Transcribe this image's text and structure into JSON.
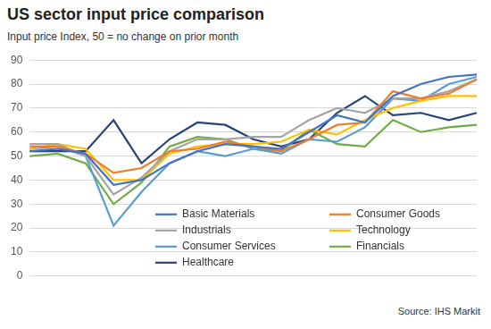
{
  "chart_data": {
    "type": "line",
    "title": "US sector input price comparison",
    "subtitle": "Input price Index, 50 = no change on prior month",
    "source": "Source: IHS Markit",
    "categories": [
      null,
      null,
      null,
      null,
      null,
      null,
      null,
      null,
      null,
      null,
      null,
      null,
      null,
      null,
      null,
      null,
      null
    ],
    "series": [
      {
        "name": "Basic Materials",
        "color": "#4472c4",
        "values": [
          52,
          53,
          51,
          38,
          40,
          47,
          52,
          55,
          54,
          53,
          60,
          67,
          64,
          75,
          80,
          83,
          84
        ]
      },
      {
        "name": "Consumer Goods",
        "color": "#ed7d31",
        "values": [
          54,
          54,
          51,
          43,
          45,
          52,
          53,
          56,
          54,
          52,
          57,
          63,
          64,
          77,
          74,
          76,
          82
        ]
      },
      {
        "name": "Industrials",
        "color": "#a5a5a5",
        "values": [
          55,
          55,
          50,
          34,
          41,
          52,
          57,
          57,
          58,
          58,
          65,
          70,
          68,
          74,
          74,
          77,
          82
        ]
      },
      {
        "name": "Technology",
        "color": "#ffc000",
        "values": [
          53,
          55,
          53,
          40,
          40,
          51,
          54,
          55,
          55,
          56,
          61,
          59,
          65,
          70,
          73,
          75,
          75
        ]
      },
      {
        "name": "Consumer Services",
        "color": "#5b9bd5",
        "values": [
          53,
          54,
          50,
          21,
          35,
          47,
          52,
          50,
          53,
          51,
          57,
          56,
          62,
          74,
          73,
          80,
          83
        ]
      },
      {
        "name": "Financials",
        "color": "#70ad47",
        "values": [
          50,
          51,
          47,
          30,
          39,
          54,
          58,
          57,
          53,
          52,
          61,
          55,
          54,
          65,
          60,
          62,
          63
        ]
      },
      {
        "name": "Healthcare",
        "color": "#264478",
        "values": [
          52,
          52,
          52,
          65,
          47,
          57,
          64,
          63,
          57,
          54,
          57,
          68,
          75,
          67,
          68,
          65,
          68
        ]
      }
    ],
    "ylim": [
      0,
      90
    ],
    "yticks": [
      0,
      10,
      20,
      30,
      40,
      50,
      60,
      70,
      80,
      90
    ],
    "grid": true,
    "legend": "bottom-right",
    "tick_labels": "y"
  }
}
